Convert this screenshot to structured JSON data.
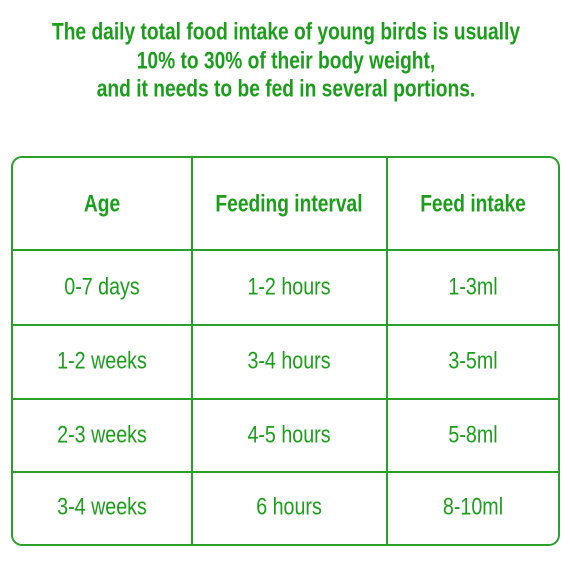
{
  "title": {
    "lines": [
      "The daily total food intake of young birds is usually",
      "10% to 30% of their body weight,",
      "and it needs to be fed in several portions."
    ]
  },
  "table": {
    "header": [
      "Age",
      "Feeding interval",
      "Feed intake"
    ],
    "rows": [
      [
        "0-7 days",
        "1-2 hours",
        "1-3ml"
      ],
      [
        "1-2 weeks",
        "3-4 hours",
        "3-5ml"
      ],
      [
        "2-3 weeks",
        "4-5 hours",
        "5-8ml"
      ],
      [
        "3-4 weeks",
        "6 hours",
        "8-10ml"
      ]
    ]
  }
}
